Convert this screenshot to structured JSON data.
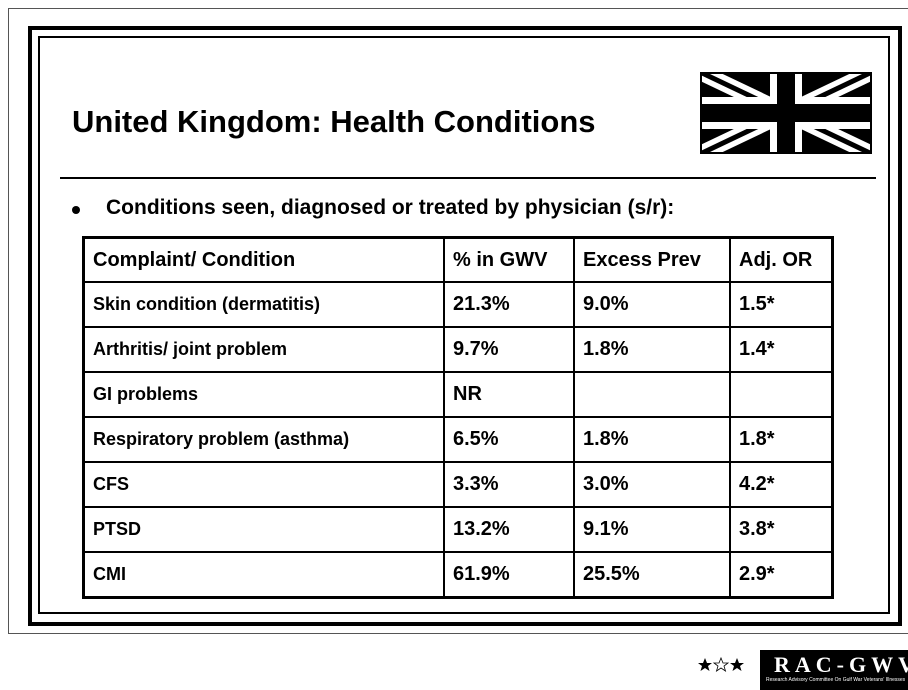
{
  "header": {
    "title": "United Kingdom: Health Conditions"
  },
  "bullet": "Conditions seen, diagnosed or treated by physician (s/r):",
  "table": {
    "columns": [
      "Complaint/ Condition",
      "% in GWV",
      "Excess Prev",
      "Adj. OR"
    ],
    "rows": [
      [
        "Skin condition (dermatitis)",
        "21.3%",
        "9.0%",
        "1.5*"
      ],
      [
        "Arthritis/ joint problem",
        "9.7%",
        "1.8%",
        "1.4*"
      ],
      [
        "GI problems",
        "NR",
        null,
        null
      ],
      [
        "Respiratory problem (asthma)",
        "6.5%",
        "1.8%",
        "1.8*"
      ],
      [
        "CFS",
        "3.3%",
        "3.0%",
        "4.2*"
      ],
      [
        "PTSD",
        "13.2%",
        "9.1%",
        "3.8*"
      ],
      [
        "CMI",
        "61.9%",
        "25.5%",
        "2.9*"
      ]
    ]
  },
  "footer": {
    "logo": "RAC-GWVI",
    "logo_subtitle": "Research Advisory Committee On Gulf War Veterans' Illnesses"
  }
}
